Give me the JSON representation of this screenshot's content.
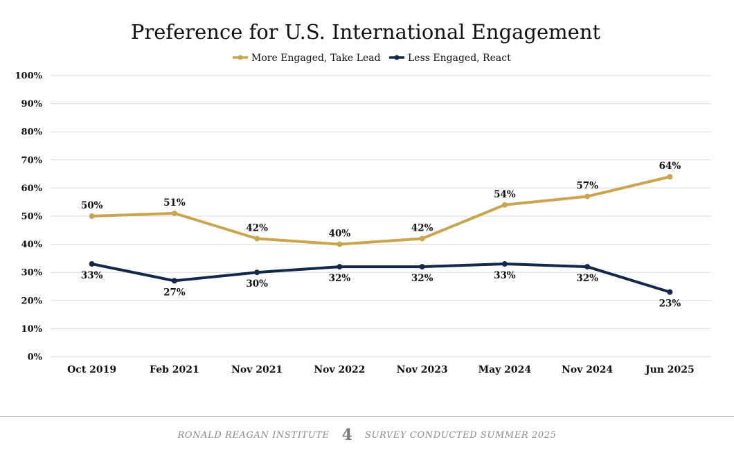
{
  "colors": {
    "more_engaged": "#c9a54d",
    "less_engaged": "#14284b",
    "grid": "#d9d9d9"
  },
  "chart_data": {
    "type": "line",
    "title": "Preference for U.S. International Engagement",
    "xlabel": "",
    "ylabel": "",
    "categories": [
      "Oct 2019",
      "Feb 2021",
      "Nov 2021",
      "Nov 2022",
      "Nov 2023",
      "May 2024",
      "Nov 2024",
      "Jun 2025"
    ],
    "series": [
      {
        "name": "More Engaged, Take Lead",
        "values": [
          50,
          51,
          42,
          40,
          42,
          54,
          57,
          64
        ],
        "color": "#c9a54d"
      },
      {
        "name": "Less Engaged, React",
        "values": [
          33,
          27,
          30,
          32,
          32,
          33,
          32,
          23
        ],
        "color": "#14284b"
      }
    ],
    "ylim": [
      0,
      100
    ],
    "yticks": [
      "0%",
      "10%",
      "20%",
      "30%",
      "40%",
      "50%",
      "60%",
      "70%",
      "80%",
      "90%",
      "100%"
    ],
    "value_suffix": "%",
    "grid": true,
    "legend_position": "top-center"
  },
  "footer": {
    "org": "RONALD REAGAN INSTITUTE",
    "page": "4",
    "survey": "SURVEY CONDUCTED SUMMER 2025"
  }
}
